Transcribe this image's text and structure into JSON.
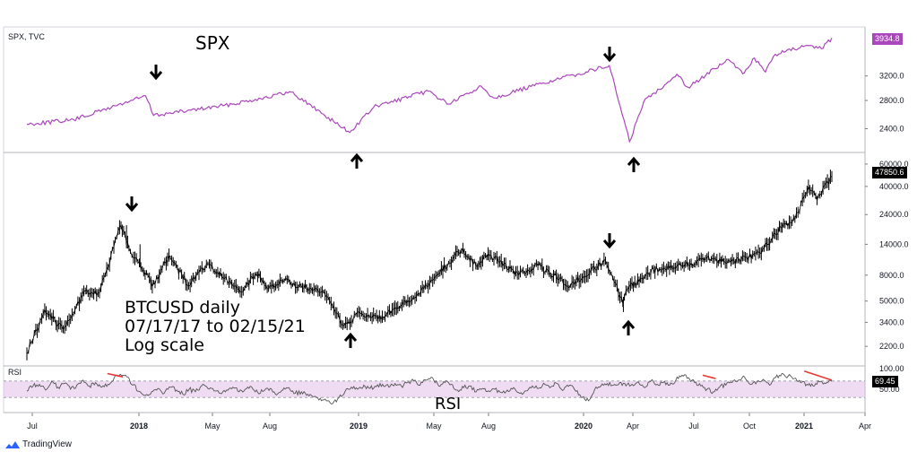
{
  "spx_panel": {
    "source_label": "SPX, TVC",
    "title": "SPX",
    "last_value": "3934.8",
    "line_color": "#ab47bc",
    "y_ticks": [
      "3200.0",
      "2800.0",
      "2400.0"
    ]
  },
  "btc_panel": {
    "annotation_lines": [
      "BTCUSD daily",
      "07/17/17 to 02/15/21",
      "Log scale"
    ],
    "last_value": "47850.6",
    "y_ticks": [
      "60000.0",
      "40000.0",
      "24000.0",
      "14000.0",
      "8000.0",
      "5000.0",
      "3400.0",
      "2200.0"
    ]
  },
  "rsi_panel": {
    "source_label": "RSI",
    "title": "RSI",
    "last_value": "69.45",
    "y_ticks": [
      "100.00",
      "50.00"
    ],
    "band_color": "#e1bee7",
    "divergence_color": "#e53935"
  },
  "x_axis": {
    "labels": [
      {
        "text": "Jul",
        "bold": false
      },
      {
        "text": "2018",
        "bold": true
      },
      {
        "text": "May",
        "bold": false
      },
      {
        "text": "Aug",
        "bold": false
      },
      {
        "text": "2019",
        "bold": true
      },
      {
        "text": "May",
        "bold": false
      },
      {
        "text": "Aug",
        "bold": false
      },
      {
        "text": "2020",
        "bold": true
      },
      {
        "text": "Apr",
        "bold": false
      },
      {
        "text": "Jul",
        "bold": false
      },
      {
        "text": "Oct",
        "bold": false
      },
      {
        "text": "2021",
        "bold": true
      },
      {
        "text": "Apr",
        "bold": false
      }
    ]
  },
  "footer": {
    "brand": "TradingView"
  },
  "chart_data": [
    {
      "type": "line",
      "title": "SPX",
      "scale": "log",
      "x": [
        "2017-07-17",
        "2017-10-01",
        "2018-01-26",
        "2018-02-08",
        "2018-06-01",
        "2018-09-20",
        "2018-12-24",
        "2019-02-01",
        "2019-05-01",
        "2019-06-03",
        "2019-07-26",
        "2019-08-15",
        "2019-11-01",
        "2020-02-19",
        "2020-03-23",
        "2020-04-15",
        "2020-06-08",
        "2020-06-26",
        "2020-08-31",
        "2020-09-23",
        "2020-10-12",
        "2020-10-30",
        "2020-11-15",
        "2020-12-31",
        "2021-01-29",
        "2021-02-15"
      ],
      "values": [
        2460,
        2520,
        2872,
        2580,
        2720,
        2930,
        2351,
        2700,
        2945,
        2745,
        3025,
        2840,
        3070,
        3386,
        2237,
        2780,
        3230,
        3010,
        3500,
        3237,
        3530,
        3270,
        3600,
        3756,
        3714,
        3934.8
      ],
      "ylim": [
        2150,
        4100
      ]
    },
    {
      "type": "line",
      "title": "BTCUSD",
      "scale": "log",
      "x": [
        "2017-07-17",
        "2017-08-15",
        "2017-09-14",
        "2017-10-20",
        "2017-11-12",
        "2017-12-17",
        "2017-12-30",
        "2018-01-16",
        "2018-02-06",
        "2018-03-05",
        "2018-04-06",
        "2018-05-05",
        "2018-06-29",
        "2018-07-25",
        "2018-08-14",
        "2018-09-04",
        "2018-10-15",
        "2018-11-14",
        "2018-12-15",
        "2019-01-10",
        "2019-02-08",
        "2019-04-02",
        "2019-05-15",
        "2019-06-26",
        "2019-07-17",
        "2019-08-06",
        "2019-09-25",
        "2019-10-26",
        "2019-12-18",
        "2020-02-13",
        "2020-03-12",
        "2020-03-20",
        "2020-05-01",
        "2020-06-15",
        "2020-07-27",
        "2020-09-04",
        "2020-10-21",
        "2020-11-24",
        "2020-12-17",
        "2021-01-08",
        "2021-01-22",
        "2021-02-15"
      ],
      "values": [
        1920,
        4300,
        3000,
        6000,
        5800,
        19800,
        13000,
        10000,
        6500,
        11500,
        6600,
        9800,
        5900,
        8200,
        6300,
        7300,
        6300,
        5600,
        3200,
        4000,
        3600,
        5000,
        8000,
        13000,
        9500,
        11800,
        8000,
        9500,
        6600,
        10400,
        4800,
        6200,
        8900,
        9400,
        11000,
        10200,
        12000,
        19000,
        22000,
        40000,
        31000,
        47850.6
      ],
      "ylim": [
        1700,
        65000
      ]
    },
    {
      "type": "line",
      "title": "RSI",
      "x_range": [
        "2017-07-17",
        "2021-02-15"
      ],
      "band": [
        30,
        70
      ],
      "ylim": [
        0,
        100
      ],
      "values": [
        45,
        58,
        62,
        48,
        70,
        55,
        64,
        50,
        60,
        72,
        58,
        66,
        55,
        62,
        78,
        86,
        80,
        60,
        45,
        35,
        44,
        52,
        40,
        55,
        48,
        38,
        50,
        44,
        58,
        52,
        46,
        40,
        48,
        55,
        44,
        50,
        56,
        42,
        46,
        52,
        36,
        48,
        54,
        40,
        44,
        38,
        32,
        28,
        22,
        15,
        30,
        45,
        55,
        50,
        60,
        52,
        56,
        62,
        55,
        64,
        58,
        66,
        70,
        60,
        72,
        78,
        58,
        66,
        62,
        48,
        54,
        58,
        44,
        52,
        46,
        50,
        42,
        48,
        54,
        40,
        46,
        58,
        52,
        62,
        56,
        64,
        48,
        60,
        45,
        30,
        22,
        50,
        58,
        64,
        60,
        66,
        58,
        62,
        68,
        54,
        70,
        62,
        66,
        60,
        72,
        84,
        78,
        66,
        58,
        50,
        44,
        55,
        60,
        66,
        72,
        80,
        62,
        68,
        74,
        60,
        78,
        88,
        82,
        76,
        66,
        62,
        58,
        68,
        64,
        69.45
      ]
    }
  ]
}
